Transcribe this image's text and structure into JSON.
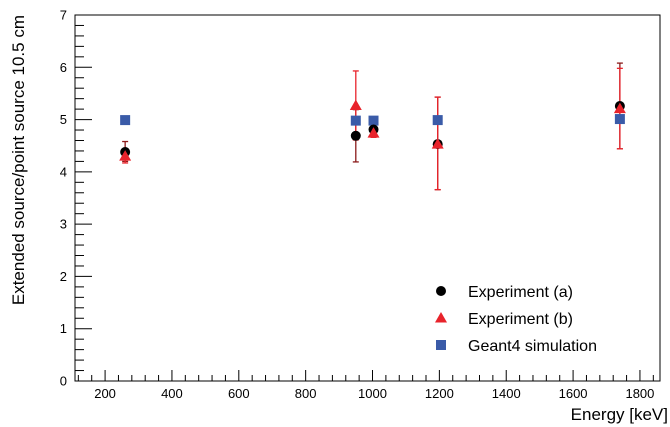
{
  "chart_data": {
    "type": "scatter",
    "xlabel": "Energy [keV]",
    "ylabel": "Extended source/point source 10.5 cm",
    "xlim": [
      110,
      1860
    ],
    "ylim": [
      0,
      7
    ],
    "x_ticks": [
      200,
      400,
      600,
      800,
      1000,
      1200,
      1400,
      1600,
      1800
    ],
    "y_ticks": [
      0,
      1,
      2,
      3,
      4,
      5,
      6,
      7
    ],
    "x_tick_labels": [
      "200",
      "400",
      "600",
      "800",
      "1000",
      "1200",
      "1400",
      "1600",
      "1800"
    ],
    "y_tick_labels": [
      "0",
      "1",
      "2",
      "3",
      "4",
      "5",
      "6",
      "7"
    ],
    "grid": false,
    "legend_position": "bottom-right",
    "series": [
      {
        "name": "Experiment (a)",
        "marker": "circle",
        "color": "#000000",
        "error_color": "#8b1a1a",
        "points": [
          {
            "x": 260,
            "y": 4.38,
            "err_low": 0.18,
            "err_high": 0.2
          },
          {
            "x": 950,
            "y": 4.69,
            "err_low": 0.5,
            "err_high": 0.5
          },
          {
            "x": 1003,
            "y": 4.81,
            "err_low": 0.1,
            "err_high": 0.1
          },
          {
            "x": 1195,
            "y": 4.53,
            "err_low": 0.87,
            "err_high": 0.9
          },
          {
            "x": 1740,
            "y": 5.26,
            "err_low": 0.82,
            "err_high": 0.82
          }
        ]
      },
      {
        "name": "Experiment (b)",
        "marker": "triangle",
        "color": "#e8232b",
        "error_color": "#e8232b",
        "points": [
          {
            "x": 260,
            "y": 4.3,
            "err_low": 0.13,
            "err_high": 0.13
          },
          {
            "x": 950,
            "y": 5.27,
            "err_low": 0.66,
            "err_high": 0.66
          },
          {
            "x": 1003,
            "y": 4.74,
            "err_low": 0.08,
            "err_high": 0.08
          },
          {
            "x": 1195,
            "y": 4.53,
            "err_low": 0.87,
            "err_high": 0.9
          },
          {
            "x": 1740,
            "y": 5.21,
            "err_low": 0.77,
            "err_high": 0.77
          }
        ]
      },
      {
        "name": "Geant4 simulation",
        "marker": "square",
        "color": "#3a5ba8",
        "error_color": "#3a5ba8",
        "points": [
          {
            "x": 260,
            "y": 4.99
          },
          {
            "x": 950,
            "y": 4.98
          },
          {
            "x": 1003,
            "y": 4.98
          },
          {
            "x": 1195,
            "y": 4.99
          },
          {
            "x": 1740,
            "y": 5.01
          }
        ]
      }
    ]
  }
}
